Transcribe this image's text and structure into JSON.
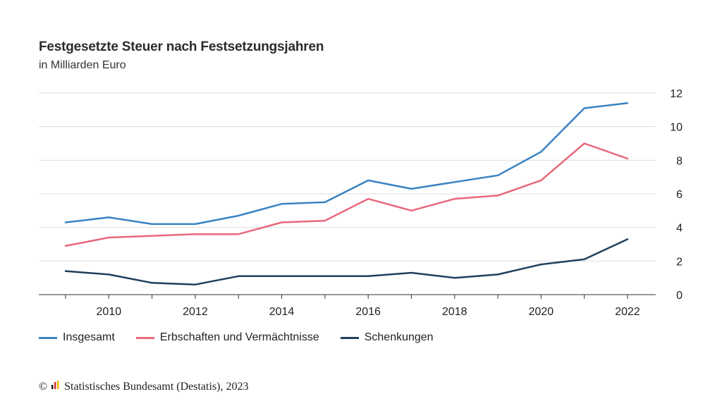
{
  "title": "Festgesetzte Steuer nach Festsetzungsjahren",
  "subtitle": "in Milliarden Euro",
  "source": {
    "copyright_symbol": "©",
    "text": "Statistisches Bundesamt (Destatis), 2023",
    "logo_icon": "destatis-logo-icon"
  },
  "chart_data": {
    "type": "line",
    "x": [
      2009,
      2010,
      2011,
      2012,
      2013,
      2014,
      2015,
      2016,
      2017,
      2018,
      2019,
      2020,
      2021,
      2022
    ],
    "x_tick_labels": [
      "2010",
      "2012",
      "2014",
      "2016",
      "2018",
      "2020",
      "2022"
    ],
    "x_ticks": [
      2010,
      2012,
      2014,
      2016,
      2018,
      2020,
      2022
    ],
    "y_tick_labels": [
      "0",
      "2",
      "4",
      "6",
      "8",
      "10",
      "12"
    ],
    "y_ticks": [
      0,
      2,
      4,
      6,
      8,
      10,
      12
    ],
    "xlim": [
      2009,
      2022
    ],
    "ylim": [
      0,
      12
    ],
    "grid": "horizontal",
    "y_axis_side": "right",
    "legend_position": "bottom",
    "series": [
      {
        "name": "Insgesamt",
        "color": "#3a83c1",
        "values": [
          4.3,
          4.6,
          4.2,
          4.2,
          4.7,
          5.4,
          5.5,
          6.8,
          6.3,
          6.7,
          7.1,
          8.5,
          11.1,
          11.4
        ]
      },
      {
        "name": "Erbschaften und Vermächtnisse",
        "color": "#e8687a",
        "values": [
          2.9,
          3.4,
          3.5,
          3.6,
          3.6,
          4.3,
          4.4,
          5.7,
          5.0,
          5.7,
          5.9,
          6.8,
          9.0,
          8.1
        ]
      },
      {
        "name": "Schenkungen",
        "color": "#1f3f5e",
        "values": [
          1.4,
          1.2,
          0.7,
          0.6,
          1.1,
          1.1,
          1.1,
          1.1,
          1.3,
          1.0,
          1.2,
          1.8,
          2.1,
          3.3
        ]
      }
    ]
  }
}
